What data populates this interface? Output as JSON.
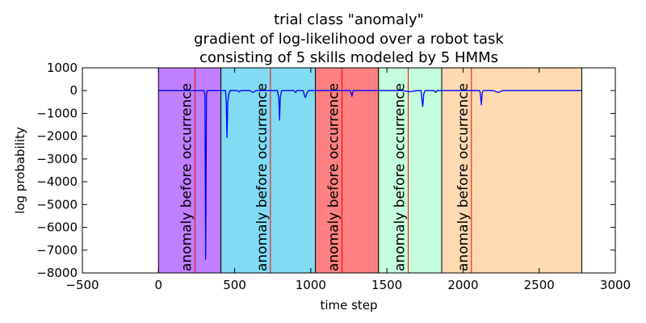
{
  "chart_data": {
    "type": "line",
    "title_lines": [
      "trial class \"anomaly\"",
      "gradient of log-likelihood over a robot task",
      "consisting of 5 skills modeled by 5 HMMs"
    ],
    "xlabel": "time step",
    "ylabel": "log probability",
    "xlim": [
      -500,
      3000
    ],
    "ylim": [
      -8000,
      1000
    ],
    "xticks": [
      -500,
      0,
      500,
      1000,
      1500,
      2000,
      2500,
      3000
    ],
    "yticks": [
      1000,
      0,
      -1000,
      -2000,
      -3000,
      -4000,
      -5000,
      -6000,
      -7000,
      -8000
    ],
    "grid": false,
    "skills": [
      {
        "start": 0,
        "end": 410,
        "color": "#bf80ff"
      },
      {
        "start": 410,
        "end": 1030,
        "color": "#80dbf3"
      },
      {
        "start": 1030,
        "end": 1445,
        "color": "#ff8080"
      },
      {
        "start": 1445,
        "end": 1860,
        "color": "#c4fcde"
      },
      {
        "start": 1860,
        "end": 2780,
        "color": "#ffd9b0"
      }
    ],
    "anomaly_markers": [
      {
        "x": 240,
        "label": "anomaly before occurrence"
      },
      {
        "x": 735,
        "label": "anomaly before occurrence"
      },
      {
        "x": 1205,
        "label": "anomaly before occurrence"
      },
      {
        "x": 1640,
        "label": "anomaly before occurrence"
      },
      {
        "x": 2055,
        "label": "anomaly before occurrence"
      }
    ],
    "marker_color": "#ff0000",
    "series": [
      {
        "color": "#0000ff",
        "points": [
          [
            0,
            0
          ],
          [
            300,
            0
          ],
          [
            305,
            -200
          ],
          [
            310,
            -7400
          ],
          [
            315,
            -200
          ],
          [
            320,
            0
          ],
          [
            410,
            0
          ],
          [
            440,
            0
          ],
          [
            445,
            -500
          ],
          [
            450,
            -2050
          ],
          [
            455,
            -500
          ],
          [
            462,
            -150
          ],
          [
            470,
            0
          ],
          [
            520,
            0
          ],
          [
            530,
            -60
          ],
          [
            540,
            0
          ],
          [
            600,
            0
          ],
          [
            620,
            -80
          ],
          [
            640,
            0
          ],
          [
            780,
            0
          ],
          [
            790,
            -300
          ],
          [
            795,
            -1300
          ],
          [
            800,
            -300
          ],
          [
            808,
            0
          ],
          [
            890,
            0
          ],
          [
            900,
            -80
          ],
          [
            910,
            0
          ],
          [
            950,
            0
          ],
          [
            960,
            -250
          ],
          [
            965,
            -300
          ],
          [
            975,
            -100
          ],
          [
            985,
            0
          ],
          [
            1030,
            0
          ],
          [
            1200,
            0
          ],
          [
            1260,
            0
          ],
          [
            1265,
            -120
          ],
          [
            1270,
            -250
          ],
          [
            1278,
            0
          ],
          [
            1445,
            0
          ],
          [
            1600,
            0
          ],
          [
            1650,
            -50
          ],
          [
            1700,
            0
          ],
          [
            1725,
            0
          ],
          [
            1730,
            -400
          ],
          [
            1735,
            -700
          ],
          [
            1742,
            -150
          ],
          [
            1750,
            0
          ],
          [
            1810,
            0
          ],
          [
            1820,
            -80
          ],
          [
            1830,
            0
          ],
          [
            1860,
            0
          ],
          [
            2110,
            0
          ],
          [
            2115,
            -200
          ],
          [
            2120,
            -620
          ],
          [
            2126,
            -100
          ],
          [
            2132,
            0
          ],
          [
            2200,
            0
          ],
          [
            2230,
            -80
          ],
          [
            2260,
            0
          ],
          [
            2780,
            0
          ]
        ]
      }
    ]
  }
}
